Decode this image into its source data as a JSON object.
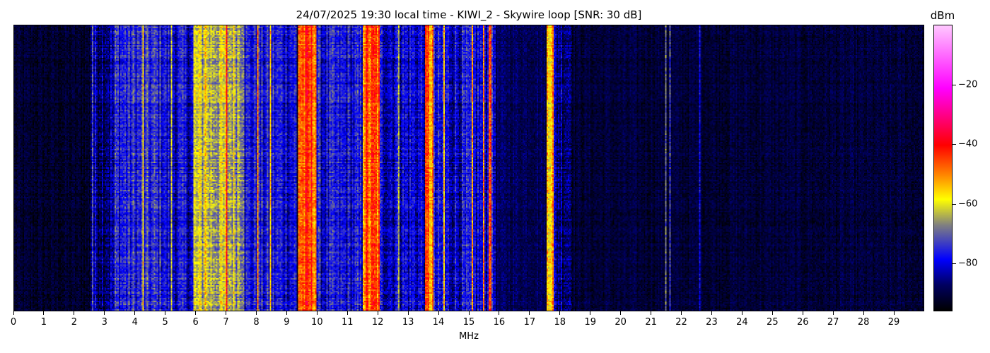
{
  "chart_data": {
    "type": "heatmap",
    "title": "24/07/2025 19:30 local time - KIWI_2 - Skywire loop [SNR: 30 dB]",
    "xlabel": "MHz",
    "xlim": [
      0,
      30
    ],
    "xticks": [
      "0",
      "1",
      "2",
      "3",
      "4",
      "5",
      "6",
      "7",
      "8",
      "9",
      "10",
      "11",
      "12",
      "13",
      "14",
      "15",
      "16",
      "17",
      "18",
      "19",
      "20",
      "21",
      "22",
      "23",
      "24",
      "25",
      "26",
      "27",
      "28",
      "29"
    ],
    "colorbar": {
      "label": "dBm",
      "range": [
        -96,
        0
      ],
      "ticks": [
        "−20",
        "−40",
        "−60",
        "−80"
      ],
      "tick_values": [
        -20,
        -40,
        -60,
        -80
      ],
      "colormap": [
        "#000000",
        "#000060",
        "#0000ff",
        "#808080",
        "#ffff00",
        "#ff8000",
        "#ff0000",
        "#ff00ff",
        "#ffc8ff"
      ]
    },
    "bands": [
      {
        "from": 0,
        "to": 2.5,
        "dbm": -92
      },
      {
        "from": 2.5,
        "to": 3.3,
        "dbm": -84
      },
      {
        "from": 3.3,
        "to": 5.0,
        "dbm": -76
      },
      {
        "from": 5.0,
        "to": 5.9,
        "dbm": -80
      },
      {
        "from": 5.9,
        "to": 7.6,
        "dbm": -63
      },
      {
        "from": 7.6,
        "to": 9.3,
        "dbm": -78
      },
      {
        "from": 9.35,
        "to": 9.95,
        "dbm": -46
      },
      {
        "from": 9.95,
        "to": 11.5,
        "dbm": -79
      },
      {
        "from": 11.5,
        "to": 12.05,
        "dbm": -47
      },
      {
        "from": 12.05,
        "to": 13.55,
        "dbm": -80
      },
      {
        "from": 13.55,
        "to": 13.85,
        "dbm": -50
      },
      {
        "from": 13.85,
        "to": 15.9,
        "dbm": -80
      },
      {
        "from": 15.9,
        "to": 17.5,
        "dbm": -88
      },
      {
        "from": 17.55,
        "to": 17.8,
        "dbm": -52
      },
      {
        "from": 17.8,
        "to": 18.4,
        "dbm": -84
      },
      {
        "from": 18.4,
        "to": 30,
        "dbm": -91
      }
    ],
    "lines": [
      {
        "mhz": 2.57,
        "dbm": -70
      },
      {
        "mhz": 4.25,
        "dbm": -60
      },
      {
        "mhz": 5.2,
        "dbm": -66
      },
      {
        "mhz": 6.3,
        "dbm": -50
      },
      {
        "mhz": 7.0,
        "dbm": -45
      },
      {
        "mhz": 8.05,
        "dbm": -44
      },
      {
        "mhz": 8.45,
        "dbm": -58
      },
      {
        "mhz": 12.7,
        "dbm": -60
      },
      {
        "mhz": 14.2,
        "dbm": -55
      },
      {
        "mhz": 15.1,
        "dbm": -58
      },
      {
        "mhz": 15.5,
        "dbm": -55
      },
      {
        "mhz": 15.7,
        "dbm": -40
      },
      {
        "mhz": 21.5,
        "dbm": -68
      },
      {
        "mhz": 21.65,
        "dbm": -75
      },
      {
        "mhz": 22.6,
        "dbm": -72
      }
    ],
    "grid": false
  }
}
